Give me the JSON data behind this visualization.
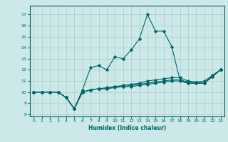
{
  "xlabel": "Humidex (Indice chaleur)",
  "bg_color": "#cce8e8",
  "grid_color": "#aacccc",
  "line_color": "#006666",
  "xlim": [
    -0.5,
    23.5
  ],
  "ylim": [
    7.8,
    17.8
  ],
  "xticks": [
    0,
    1,
    2,
    3,
    4,
    5,
    6,
    7,
    8,
    9,
    10,
    11,
    12,
    13,
    14,
    15,
    16,
    17,
    18,
    19,
    20,
    21,
    22,
    23
  ],
  "yticks": [
    8,
    9,
    10,
    11,
    12,
    13,
    14,
    15,
    16,
    17
  ],
  "lines": [
    {
      "x": [
        0,
        1,
        2,
        3,
        4,
        5,
        6,
        7,
        8,
        9,
        10,
        11,
        12,
        13,
        14,
        15,
        16,
        17,
        18,
        19,
        20,
        21,
        22,
        23
      ],
      "y": [
        10,
        10,
        10,
        10,
        9.5,
        8.5,
        10.2,
        12.2,
        12.4,
        12.0,
        13.2,
        13.0,
        13.8,
        14.8,
        17.0,
        15.5,
        15.5,
        14.1,
        11.1,
        10.8,
        10.8,
        10.8,
        11.5,
        12.0
      ]
    },
    {
      "x": [
        0,
        1,
        2,
        3,
        4,
        5,
        6,
        7,
        8,
        9,
        10,
        11,
        12,
        13,
        14,
        15,
        16,
        17,
        18,
        19,
        20,
        21,
        22,
        23
      ],
      "y": [
        10,
        10,
        10,
        10,
        9.5,
        8.5,
        10.0,
        10.2,
        10.3,
        10.3,
        10.4,
        10.5,
        10.5,
        10.6,
        10.7,
        10.8,
        10.9,
        11.0,
        11.0,
        10.8,
        10.8,
        10.8,
        11.4,
        12.0
      ]
    },
    {
      "x": [
        0,
        1,
        2,
        3,
        4,
        5,
        6,
        7,
        8,
        9,
        10,
        11,
        12,
        13,
        14,
        15,
        16,
        17,
        18,
        19,
        20,
        21,
        22,
        23
      ],
      "y": [
        10,
        10,
        10,
        10,
        9.5,
        8.5,
        10.0,
        10.2,
        10.3,
        10.3,
        10.5,
        10.5,
        10.6,
        10.7,
        10.8,
        10.9,
        11.0,
        11.1,
        11.1,
        10.9,
        10.9,
        10.8,
        11.4,
        12.0
      ]
    },
    {
      "x": [
        0,
        1,
        2,
        3,
        4,
        5,
        6,
        7,
        8,
        9,
        10,
        11,
        12,
        13,
        14,
        15,
        16,
        17,
        18,
        19,
        20,
        21,
        22,
        23
      ],
      "y": [
        10,
        10,
        10,
        10,
        9.5,
        8.5,
        10.0,
        10.2,
        10.3,
        10.4,
        10.5,
        10.6,
        10.7,
        10.8,
        11.0,
        11.1,
        11.2,
        11.3,
        11.3,
        11.0,
        10.9,
        11.0,
        11.5,
        12.0
      ]
    }
  ]
}
